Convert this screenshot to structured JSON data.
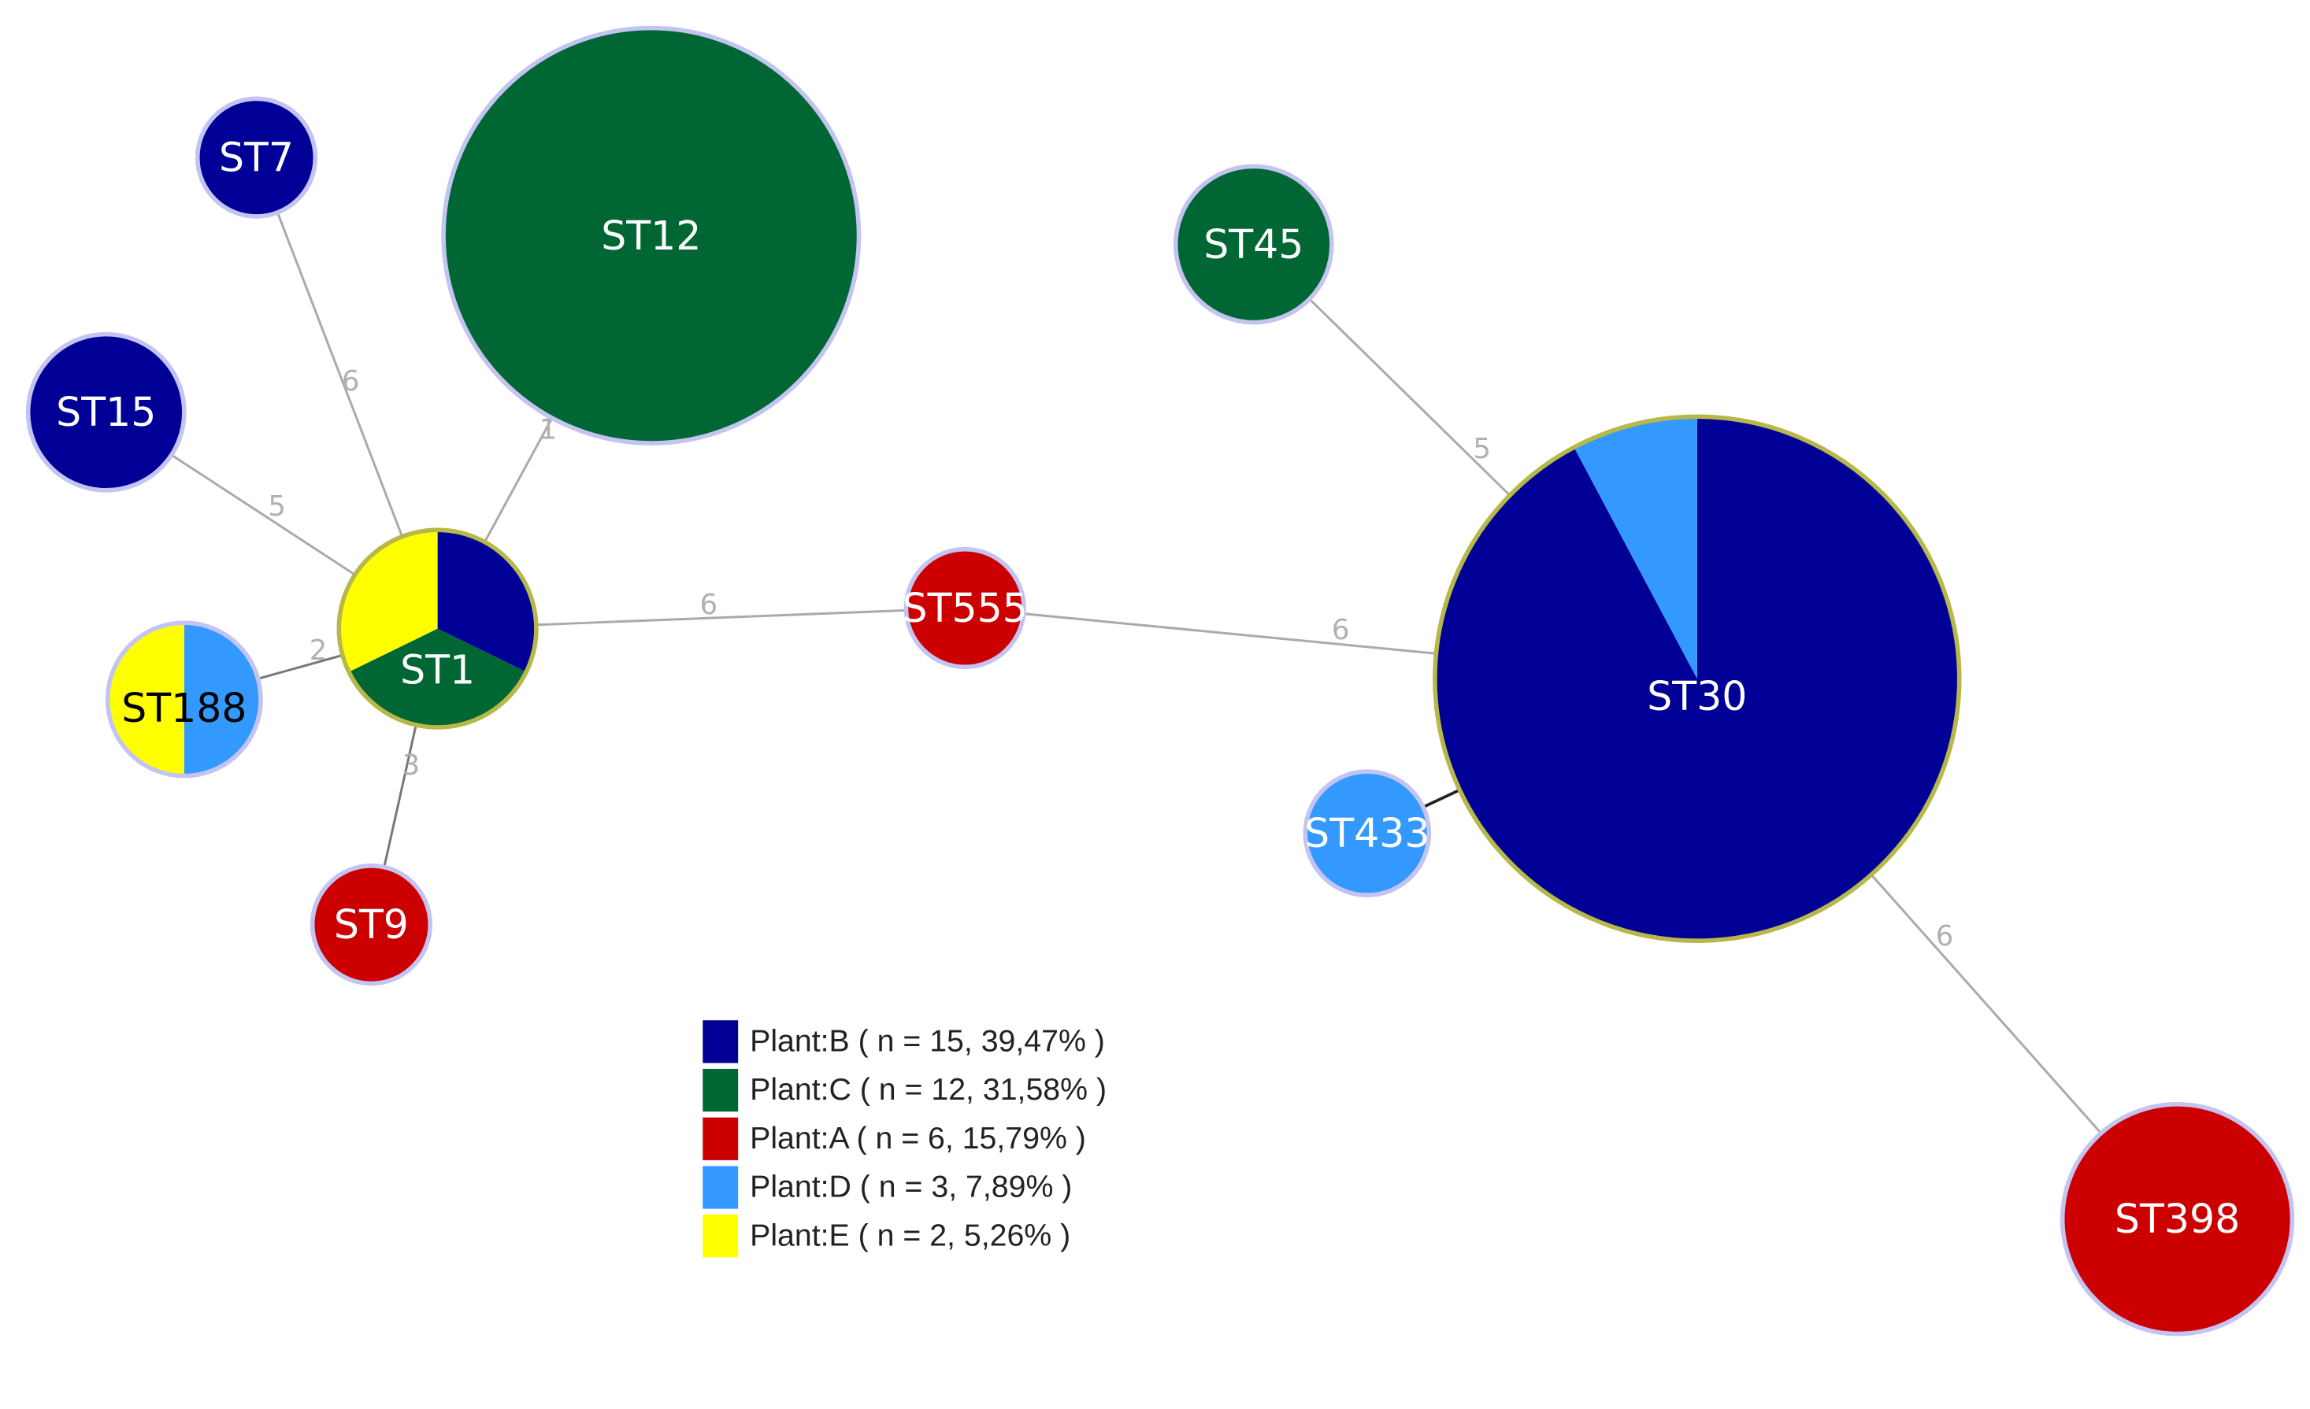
{
  "nodes": [
    {
      "label": "ST7"
    },
    {
      "label": "ST12"
    },
    {
      "label": "ST15"
    },
    {
      "label": "ST1"
    },
    {
      "label": "ST188"
    },
    {
      "label": "ST9"
    },
    {
      "label": "ST555"
    },
    {
      "label": "ST45"
    },
    {
      "label": "ST30"
    },
    {
      "label": "ST433"
    },
    {
      "label": "ST398"
    }
  ],
  "edges": [
    {
      "label": 6
    },
    {
      "label": 1
    },
    {
      "label": 5
    },
    {
      "label": 2
    },
    {
      "label": 3
    },
    {
      "label": 6
    },
    {
      "label": 6
    },
    {
      "label": 5
    },
    {
      "label": 6
    }
  ],
  "legend": [
    "Plant:B ( n = 15, 39,47% )",
    "Plant:C ( n = 12, 31,58% )",
    "Plant:A ( n = 6, 15,79% )",
    "Plant:D ( n = 3, 7,89% )",
    "Plant:E ( n = 2, 5,26% )"
  ]
}
